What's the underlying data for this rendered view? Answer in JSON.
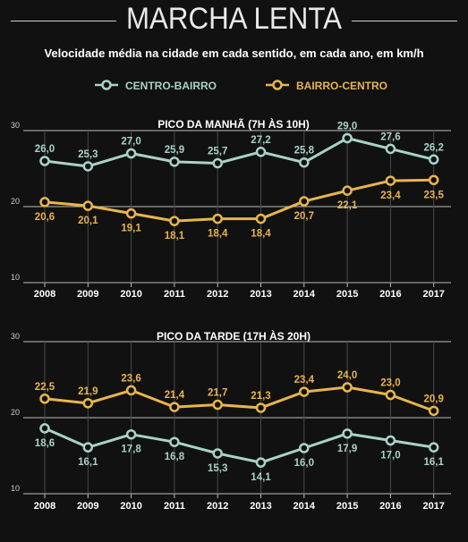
{
  "header": {
    "title": "MARCHA LENTA",
    "subtitle": "Velocidade média na cidade em cada sentido, em cada ano, em km/h"
  },
  "legend": [
    {
      "label": "CENTRO-BAIRRO",
      "color": "#a8d3c8"
    },
    {
      "label": "BAIRRO-CENTRO",
      "color": "#e8b54d"
    }
  ],
  "chart_data": [
    {
      "type": "line",
      "title": "PICO DA MANHÃ (7H ÀS 10H)",
      "x": [
        "2008",
        "2009",
        "2010",
        "2011",
        "2012",
        "2013",
        "2014",
        "2015",
        "2016",
        "2017"
      ],
      "ylim": [
        10,
        30
      ],
      "yticks": [
        "10",
        "20",
        "30"
      ],
      "grid": true,
      "series": [
        {
          "name": "CENTRO-BAIRRO",
          "color": "#a8d3c8",
          "values": [
            26.0,
            25.3,
            27.0,
            25.9,
            25.7,
            27.2,
            25.8,
            29.0,
            27.6,
            26.2
          ],
          "labels": [
            "26,0",
            "25,3",
            "27,0",
            "25,9",
            "25,7",
            "27,2",
            "25,8",
            "29,0",
            "27,6",
            "26,2"
          ],
          "label_pos": "above"
        },
        {
          "name": "BAIRRO-CENTRO",
          "color": "#e8b54d",
          "values": [
            20.6,
            20.1,
            19.1,
            18.1,
            18.4,
            18.4,
            20.7,
            22.1,
            23.4,
            23.5
          ],
          "labels": [
            "20,6",
            "20,1",
            "19,1",
            "18,1",
            "18,4",
            "18,4",
            "20,7",
            "22,1",
            "23,4",
            "23,5"
          ],
          "label_pos": "below"
        }
      ]
    },
    {
      "type": "line",
      "title": "PICO DA TARDE (17H ÀS 20H)",
      "x": [
        "2008",
        "2009",
        "2010",
        "2011",
        "2012",
        "2013",
        "2014",
        "2015",
        "2016",
        "2017"
      ],
      "ylim": [
        10,
        30
      ],
      "yticks": [
        "10",
        "20",
        "30"
      ],
      "grid": true,
      "series": [
        {
          "name": "BAIRRO-CENTRO",
          "color": "#e8b54d",
          "values": [
            22.5,
            21.9,
            23.6,
            21.4,
            21.7,
            21.3,
            23.4,
            24.0,
            23.0,
            20.9
          ],
          "labels": [
            "22,5",
            "21,9",
            "23,6",
            "21,4",
            "21,7",
            "21,3",
            "23,4",
            "24,0",
            "23,0",
            "20,9"
          ],
          "label_pos": "above"
        },
        {
          "name": "CENTRO-BAIRRO",
          "color": "#a8d3c8",
          "values": [
            18.6,
            16.1,
            17.8,
            16.8,
            15.3,
            14.1,
            16.0,
            17.9,
            17.0,
            16.1
          ],
          "labels": [
            "18,6",
            "16,1",
            "17,8",
            "16,8",
            "15,3",
            "14,1",
            "16,0",
            "17,9",
            "17,0",
            "16,1"
          ],
          "label_pos": "below"
        }
      ]
    }
  ]
}
